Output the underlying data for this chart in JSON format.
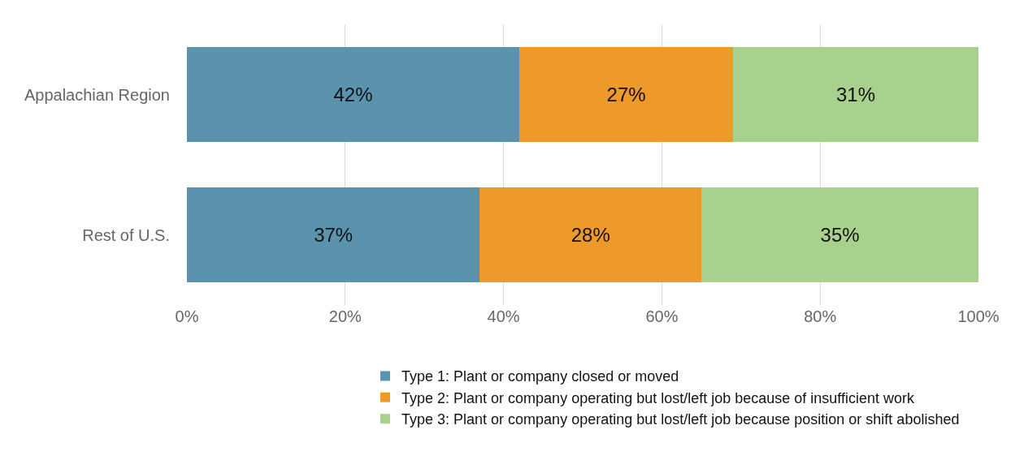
{
  "chart_data": {
    "type": "bar",
    "orientation": "horizontal",
    "stacked": true,
    "categories": [
      "Appalachian Region",
      "Rest of U.S."
    ],
    "series": [
      {
        "name": "Type 1: Plant or company closed or moved",
        "color": "#5b93ae",
        "values": [
          42,
          37
        ],
        "value_labels": [
          "42%",
          "37%"
        ]
      },
      {
        "name": "Type 2: Plant or company operating but lost/left job because of insufficient work",
        "color": "#ee9a2a",
        "values": [
          27,
          28
        ],
        "value_labels": [
          "27%",
          "28%"
        ]
      },
      {
        "name": "Type 3: Plant or company operating but lost/left job because position or shift abolished",
        "color": "#a8d18d",
        "values": [
          31,
          35
        ],
        "value_labels": [
          "31%",
          "35%"
        ]
      }
    ],
    "xlim": [
      0,
      100
    ],
    "xticks": [
      {
        "value": 0,
        "label": "0%"
      },
      {
        "value": 20,
        "label": "20%"
      },
      {
        "value": 40,
        "label": "40%"
      },
      {
        "value": 60,
        "label": "60%"
      },
      {
        "value": 80,
        "label": "80%"
      },
      {
        "value": 100,
        "label": "100%"
      }
    ],
    "grid": "x",
    "legend": "bottom"
  }
}
